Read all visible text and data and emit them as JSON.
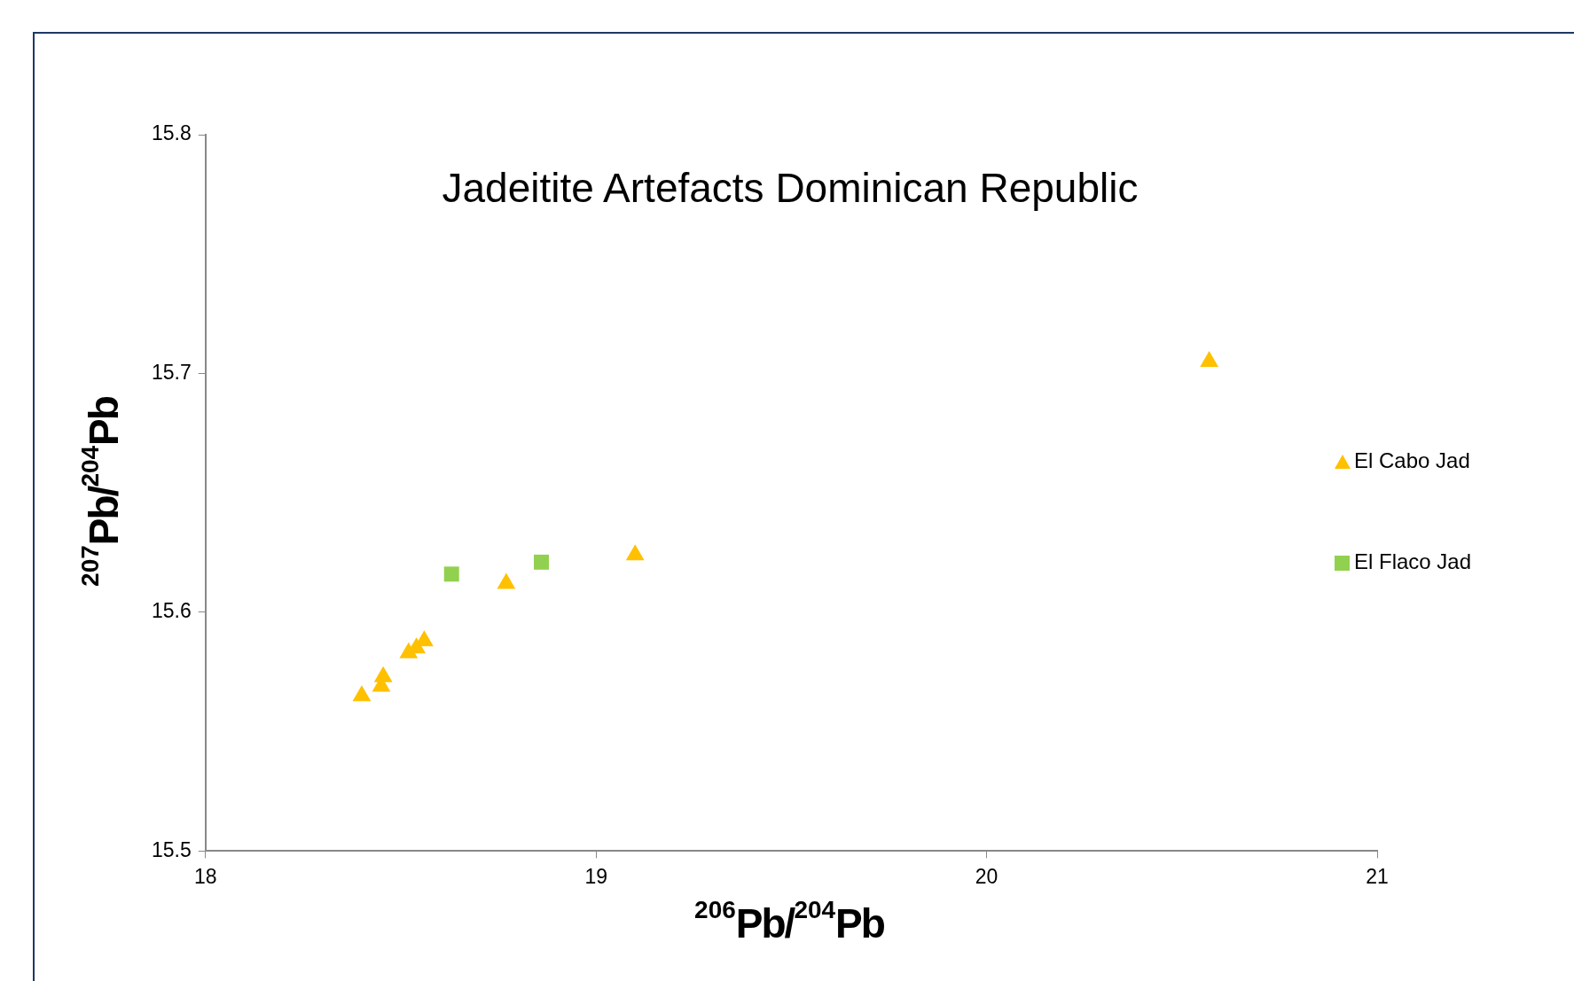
{
  "chart_data": {
    "type": "scatter",
    "title": "Jadeitite Artefacts Dominican Republic",
    "xlabel": "$^{206}$Pb/$^{204}$Pb",
    "ylabel": "$^{207}$Pb/$^{204}$Pb",
    "xlim": [
      18,
      21
    ],
    "xticks": [
      18,
      19,
      20,
      21
    ],
    "ylim": [
      15.5,
      15.8
    ],
    "yticks": [
      15.5,
      15.6,
      15.7,
      15.8
    ],
    "grid": false,
    "legend": "right",
    "series": [
      {
        "name": "El Cabo Jad",
        "color": "#ffc000",
        "marker": "triangle",
        "x": [
          18.4,
          18.45,
          18.455,
          18.52,
          18.54,
          18.56,
          18.77,
          19.1,
          20.57
        ],
        "values": [
          15.565,
          15.569,
          15.573,
          15.583,
          15.585,
          15.588,
          15.612,
          15.624,
          15.705
        ]
      },
      {
        "name": "El Flaco Jad",
        "color": "#92d050",
        "marker": "square",
        "x": [
          18.63,
          18.86
        ],
        "values": [
          15.616,
          15.621
        ]
      }
    ]
  }
}
